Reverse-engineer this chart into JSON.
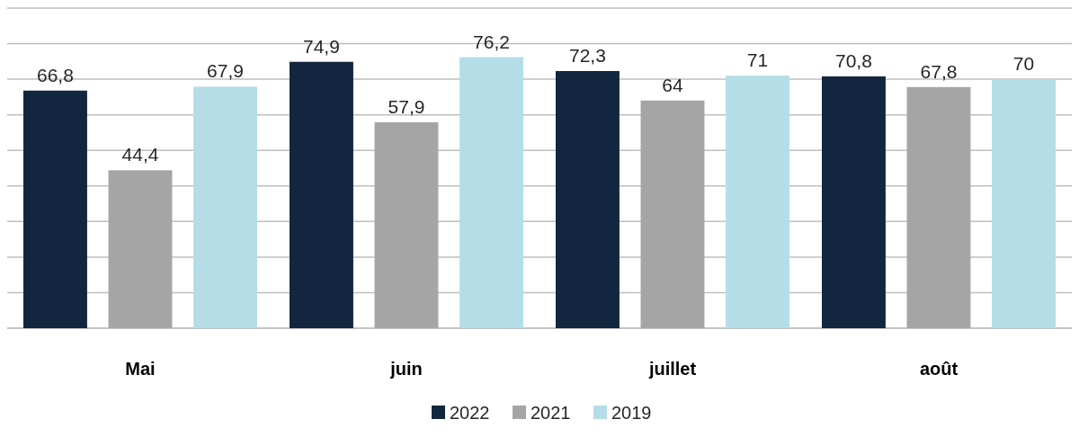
{
  "chart_data": {
    "type": "bar",
    "categories": [
      "Mai",
      "juin",
      "juillet",
      "août"
    ],
    "series": [
      {
        "name": "2022",
        "color": "#12263f",
        "values": [
          66.8,
          74.9,
          72.3,
          70.8
        ],
        "value_labels": [
          "66,8",
          "74,9",
          "72,3",
          "70,8"
        ]
      },
      {
        "name": "2021",
        "color": "#a5a5a5",
        "values": [
          44.4,
          57.9,
          64,
          67.8
        ],
        "value_labels": [
          "44,4",
          "57,9",
          "64",
          "67,8"
        ]
      },
      {
        "name": "2019",
        "color": "#b4dde7",
        "values": [
          67.9,
          76.2,
          71,
          70
        ],
        "value_labels": [
          "67,9",
          "76,2",
          "71",
          "70"
        ]
      }
    ],
    "ylim": [
      0,
      90
    ],
    "yticks": [
      {
        "value": 0,
        "label": null
      },
      {
        "value": 10,
        "label": null
      },
      {
        "value": 20,
        "label": null
      },
      {
        "value": 30,
        "label": null
      },
      {
        "value": 40,
        "label": null
      },
      {
        "value": 50,
        "label": null
      },
      {
        "value": 60,
        "label": null
      },
      {
        "value": 70,
        "label": null
      },
      {
        "value": 80,
        "label": null
      },
      {
        "value": 90,
        "label": null
      }
    ],
    "tick_labels": "x",
    "grid": "y",
    "legend": "bottom"
  }
}
